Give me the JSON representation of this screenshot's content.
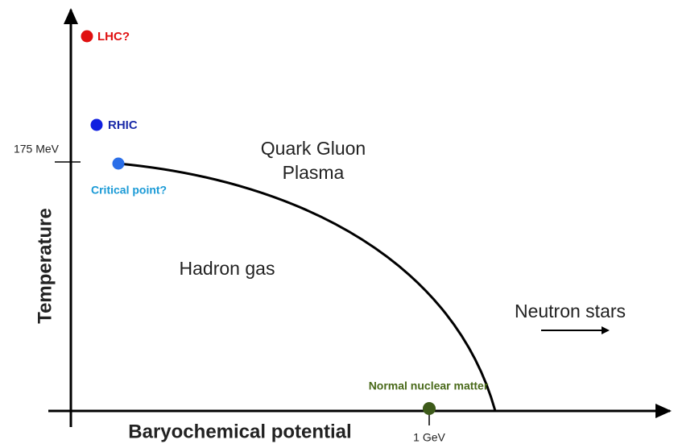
{
  "axes": {
    "x_label": "Baryochemical potential",
    "y_label": "Temperature",
    "y_tick": "175 MeV",
    "x_tick": "1 GeV"
  },
  "points": [
    {
      "label": "LHC?"
    },
    {
      "label": "RHIC"
    },
    {
      "label": "Critical point?"
    },
    {
      "label": "Normal nuclear matter"
    }
  ],
  "regions": {
    "qgp": [
      "Quark Gluon",
      "Plasma"
    ],
    "hadron": "Hadron gas",
    "neutron": "Neutron stars"
  }
}
